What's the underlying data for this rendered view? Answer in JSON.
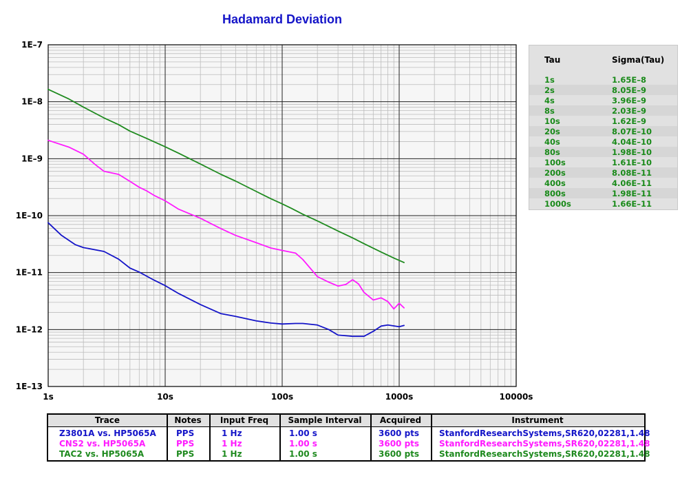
{
  "chart_data": {
    "type": "line",
    "title": "Hadamard Deviation",
    "x_scale": "log",
    "y_scale": "log",
    "xlim": [
      1,
      10000
    ],
    "ylim": [
      1e-13,
      1e-07
    ],
    "grid": true,
    "x_tick_labels": [
      "1s",
      "10s",
      "100s",
      "1000s",
      "10000s"
    ],
    "y_tick_labels": [
      "1E–13",
      "1E–12",
      "1E–11",
      "1E–10",
      "1E–9",
      "1E–8",
      "1E–7"
    ],
    "series": [
      {
        "name": "TAC2 vs. HP5065A",
        "color": "#1e8a1e",
        "x": [
          1,
          1.5,
          2,
          3,
          4,
          5,
          7,
          10,
          13,
          20,
          30,
          40,
          60,
          80,
          100,
          120,
          150,
          200,
          300,
          400,
          500,
          700,
          900,
          1100
        ],
        "y": [
          1.65e-08,
          1.12e-08,
          8.05e-09,
          5.2e-09,
          3.96e-09,
          3.05e-09,
          2.25e-09,
          1.62e-09,
          1.25e-09,
          8.07e-10,
          5.3e-10,
          4.04e-10,
          2.66e-10,
          1.98e-10,
          1.61e-10,
          1.34e-10,
          1.06e-10,
          8.08e-11,
          5.38e-11,
          4.06e-11,
          3.22e-11,
          2.3e-11,
          1.8e-11,
          1.5e-11
        ]
      },
      {
        "name": "CNS2 vs. HP5065A",
        "color": "#ff1aff",
        "x": [
          1,
          1.5,
          2,
          2.5,
          3,
          4,
          5,
          6,
          7,
          8,
          10,
          13,
          20,
          30,
          40,
          60,
          80,
          100,
          130,
          150,
          200,
          250,
          300,
          350,
          400,
          450,
          500,
          600,
          700,
          800,
          900,
          1000,
          1100
        ],
        "y": [
          2.1e-09,
          1.6e-09,
          1.2e-09,
          8e-10,
          6e-10,
          5.3e-10,
          4e-10,
          3.15e-10,
          2.7e-10,
          2.28e-10,
          1.82e-10,
          1.3e-10,
          9e-11,
          5.9e-11,
          4.5e-11,
          3.35e-11,
          2.7e-11,
          2.45e-11,
          2.2e-11,
          1.7e-11,
          8.5e-12,
          6.8e-12,
          5.8e-12,
          6.2e-12,
          7.5e-12,
          6.3e-12,
          4.5e-12,
          3.3e-12,
          3.6e-12,
          3.1e-12,
          2.3e-12,
          2.9e-12,
          2.4e-12
        ]
      },
      {
        "name": "Z3801A vs. HP5065A",
        "color": "#1414c8",
        "x": [
          1,
          1.3,
          1.7,
          2,
          3,
          4,
          5,
          6,
          8,
          10,
          13,
          20,
          30,
          40,
          60,
          80,
          100,
          130,
          150,
          200,
          250,
          300,
          400,
          500,
          600,
          700,
          800,
          1000,
          1100
        ],
        "y": [
          7.5e-11,
          4.5e-11,
          3.1e-11,
          2.75e-11,
          2.35e-11,
          1.72e-11,
          1.2e-11,
          1.02e-11,
          7.4e-12,
          5.9e-12,
          4.3e-12,
          2.75e-12,
          1.9e-12,
          1.7e-12,
          1.42e-12,
          1.3e-12,
          1.25e-12,
          1.28e-12,
          1.28e-12,
          1.2e-12,
          1e-12,
          8e-13,
          7.6e-13,
          7.6e-13,
          9.3e-13,
          1.15e-12,
          1.2e-12,
          1.12e-12,
          1.18e-12
        ]
      }
    ]
  },
  "tau_table": {
    "header_tau": "Tau",
    "header_sigma": "Sigma(Tau)",
    "rows": [
      {
        "tau": "1s",
        "sigma": "1.65E–8"
      },
      {
        "tau": "2s",
        "sigma": "8.05E–9"
      },
      {
        "tau": "4s",
        "sigma": "3.96E–9"
      },
      {
        "tau": "8s",
        "sigma": "2.03E–9"
      },
      {
        "tau": "10s",
        "sigma": "1.62E–9"
      },
      {
        "tau": "20s",
        "sigma": "8.07E–10"
      },
      {
        "tau": "40s",
        "sigma": "4.04E–10"
      },
      {
        "tau": "80s",
        "sigma": "1.98E–10"
      },
      {
        "tau": "100s",
        "sigma": "1.61E–10"
      },
      {
        "tau": "200s",
        "sigma": "8.08E–11"
      },
      {
        "tau": "400s",
        "sigma": "4.06E–11"
      },
      {
        "tau": "800s",
        "sigma": "1.98E–11"
      },
      {
        "tau": "1000s",
        "sigma": "1.66E–11"
      }
    ]
  },
  "trace_table": {
    "headers": [
      "Trace",
      "Notes",
      "Input Freq",
      "Sample Interval",
      "Acquired",
      "Instrument"
    ],
    "rows": [
      {
        "trace": "Z3801A vs. HP5065A",
        "notes": "PPS",
        "input_freq": "1 Hz",
        "sample_interval": "1.00 s",
        "acquired": "3600 pts",
        "instrument": "StanfordResearchSystems,SR620,02281,1.48",
        "color": "#1414c8"
      },
      {
        "trace": "CNS2 vs. HP5065A",
        "notes": "PPS",
        "input_freq": "1 Hz",
        "sample_interval": "1.00 s",
        "acquired": "3600 pts",
        "instrument": "StanfordResearchSystems,SR620,02281,1.48",
        "color": "#ff1aff"
      },
      {
        "trace": "TAC2 vs. HP5065A",
        "notes": "PPS",
        "input_freq": "1 Hz",
        "sample_interval": "1.00 s",
        "acquired": "3600 pts",
        "instrument": "StanfordResearchSystems,SR620,02281,1.48",
        "color": "#1e8a1e"
      }
    ]
  }
}
